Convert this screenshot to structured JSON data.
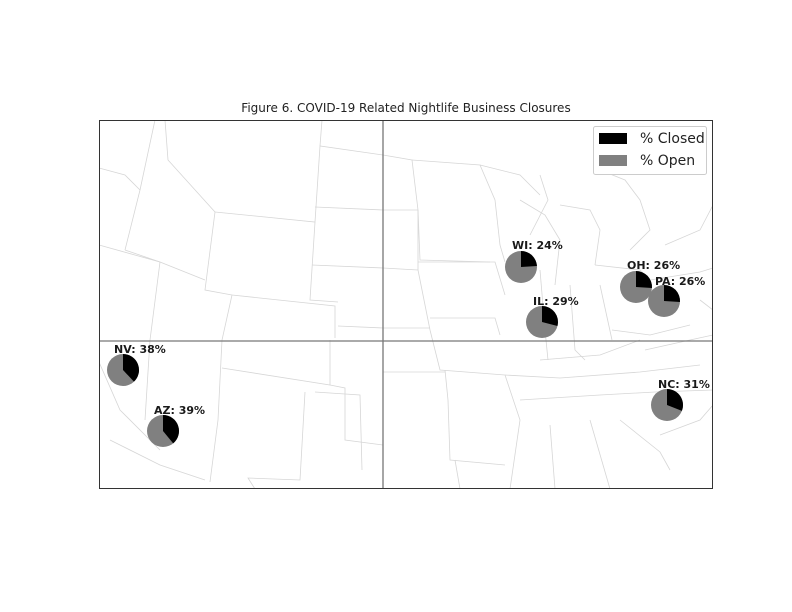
{
  "title": "Figure 6. COVID-19 Related Nightlife Business Closures",
  "legend": [
    {
      "label": "% Closed",
      "color": "#000000"
    },
    {
      "label": "% Open",
      "color": "#808080"
    }
  ],
  "markers": [
    {
      "label": "WI: 24%",
      "state": "WI",
      "closed_pct": 24
    },
    {
      "label": "IL: 29%",
      "state": "IL",
      "closed_pct": 29
    },
    {
      "label": "OH: 26%",
      "state": "OH",
      "closed_pct": 26
    },
    {
      "label": "PA: 26%",
      "state": "PA",
      "closed_pct": 26
    },
    {
      "label": "NC: 31%",
      "state": "NC",
      "closed_pct": 31
    },
    {
      "label": "NV: 38%",
      "state": "NV",
      "closed_pct": 38
    },
    {
      "label": "AZ: 39%",
      "state": "AZ",
      "closed_pct": 39
    }
  ],
  "colors": {
    "closed": "#000000",
    "open": "#808080",
    "border": "#d6d6d6",
    "frame": "#333333",
    "divider": "#777777"
  }
}
